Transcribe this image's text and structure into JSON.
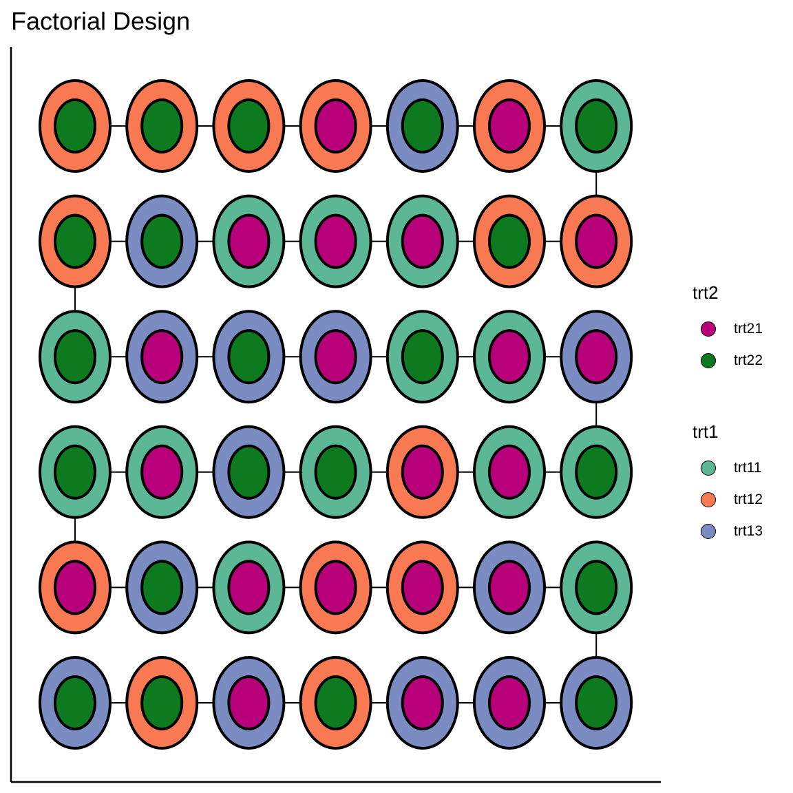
{
  "chart_data": {
    "type": "scatter",
    "title": "Factorial Design",
    "xlabel": "",
    "ylabel": "",
    "grid": false,
    "rows": 6,
    "cols": 7,
    "plot_order": "serpentine from top-left",
    "legends": [
      {
        "title": "trt2",
        "aesthetic": "inner fill",
        "entries": [
          {
            "label": "trt21",
            "color": "#B8007A"
          },
          {
            "label": "trt22",
            "color": "#0E7A1F"
          }
        ]
      },
      {
        "title": "trt1",
        "aesthetic": "outer fill",
        "entries": [
          {
            "label": "trt11",
            "color": "#5BB795"
          },
          {
            "label": "trt12",
            "color": "#F97A52"
          },
          {
            "label": "trt13",
            "color": "#7A8CC2"
          }
        ]
      }
    ],
    "grid_trt1": [
      [
        "trt12",
        "trt12",
        "trt12",
        "trt12",
        "trt13",
        "trt12",
        "trt11"
      ],
      [
        "trt12",
        "trt13",
        "trt11",
        "trt11",
        "trt11",
        "trt12",
        "trt12"
      ],
      [
        "trt11",
        "trt13",
        "trt13",
        "trt13",
        "trt11",
        "trt11",
        "trt13"
      ],
      [
        "trt11",
        "trt11",
        "trt13",
        "trt11",
        "trt12",
        "trt11",
        "trt11"
      ],
      [
        "trt12",
        "trt13",
        "trt11",
        "trt12",
        "trt12",
        "trt13",
        "trt11"
      ],
      [
        "trt13",
        "trt12",
        "trt13",
        "trt12",
        "trt13",
        "trt13",
        "trt13"
      ]
    ],
    "grid_trt2": [
      [
        "trt22",
        "trt22",
        "trt22",
        "trt21",
        "trt22",
        "trt21",
        "trt22"
      ],
      [
        "trt22",
        "trt22",
        "trt21",
        "trt21",
        "trt21",
        "trt22",
        "trt21"
      ],
      [
        "trt22",
        "trt21",
        "trt22",
        "trt21",
        "trt22",
        "trt21",
        "trt21"
      ],
      [
        "trt22",
        "trt21",
        "trt22",
        "trt22",
        "trt21",
        "trt21",
        "trt22"
      ],
      [
        "trt21",
        "trt22",
        "trt21",
        "trt21",
        "trt21",
        "trt21",
        "trt22"
      ],
      [
        "trt22",
        "trt22",
        "trt21",
        "trt22",
        "trt21",
        "trt21",
        "trt22"
      ]
    ]
  }
}
